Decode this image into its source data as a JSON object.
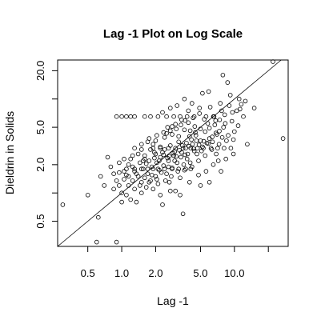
{
  "chart_data": {
    "type": "scatter",
    "title": "Lag -1 Plot on Log Scale",
    "xlabel": "Lag -1",
    "ylabel": "Dieldrin in Solids",
    "x_scale": "log",
    "y_scale": "log",
    "xlim": [
      0.27,
      30
    ],
    "ylim": [
      0.27,
      26
    ],
    "x_ticks": [
      0.5,
      1.0,
      2.0,
      5.0,
      10.0
    ],
    "x_tick_labels": [
      "0.5",
      "1.0",
      "2.0",
      "5.0",
      "10.0"
    ],
    "x_minor_ticks": [
      20.0
    ],
    "y_ticks": [
      0.5,
      2.0,
      5.0,
      20.0
    ],
    "y_tick_labels": [
      "0.5",
      "2.0",
      "5.0",
      "20.0"
    ],
    "y_minor_ticks": [
      1.0,
      10.0
    ],
    "grid": false,
    "reference_line": "y = x",
    "points": [
      [
        0.3,
        0.75
      ],
      [
        0.5,
        0.95
      ],
      [
        0.6,
        0.3
      ],
      [
        0.62,
        0.55
      ],
      [
        0.65,
        1.5
      ],
      [
        0.7,
        1.2
      ],
      [
        0.75,
        2.4
      ],
      [
        0.85,
        1.1
      ],
      [
        0.9,
        0.3
      ],
      [
        0.85,
        1.6
      ],
      [
        0.9,
        1.35
      ],
      [
        0.95,
        1.2
      ],
      [
        1.0,
        0.8
      ],
      [
        1.0,
        1.0
      ],
      [
        1.05,
        1.4
      ],
      [
        1.1,
        0.95
      ],
      [
        1.1,
        1.55
      ],
      [
        1.15,
        1.2
      ],
      [
        1.15,
        2.0
      ],
      [
        1.2,
        0.85
      ],
      [
        1.25,
        1.35
      ],
      [
        1.3,
        1.1
      ],
      [
        1.3,
        1.7
      ],
      [
        1.35,
        0.8
      ],
      [
        1.4,
        1.5
      ],
      [
        1.45,
        2.1
      ],
      [
        1.5,
        1.0
      ],
      [
        1.5,
        1.3
      ],
      [
        1.55,
        1.8
      ],
      [
        1.6,
        2.5
      ],
      [
        1.65,
        1.15
      ],
      [
        1.7,
        1.6
      ],
      [
        1.75,
        2.2
      ],
      [
        1.8,
        1.35
      ],
      [
        1.85,
        1.9
      ],
      [
        1.9,
        1.1
      ],
      [
        1.95,
        2.7
      ],
      [
        2.0,
        1.5
      ],
      [
        2.05,
        2.1
      ],
      [
        2.1,
        1.25
      ],
      [
        2.15,
        1.75
      ],
      [
        2.2,
        2.4
      ],
      [
        2.3,
        0.75
      ],
      [
        2.35,
        1.95
      ],
      [
        2.4,
        2.9
      ],
      [
        2.5,
        1.6
      ],
      [
        2.6,
        2.2
      ],
      [
        2.65,
        1.3
      ],
      [
        2.7,
        3.2
      ],
      [
        2.8,
        1.85
      ],
      [
        2.9,
        2.5
      ],
      [
        3.0,
        1.05
      ],
      [
        3.1,
        2.1
      ],
      [
        3.2,
        3.5
      ],
      [
        3.3,
        1.45
      ],
      [
        3.4,
        2.7
      ],
      [
        3.5,
        0.6
      ],
      [
        3.6,
        1.75
      ],
      [
        3.7,
        3.0
      ],
      [
        3.8,
        2.3
      ],
      [
        4.0,
        4.0
      ],
      [
        4.2,
        1.9
      ],
      [
        4.4,
        2.8
      ],
      [
        4.6,
        3.6
      ],
      [
        4.8,
        2.2
      ],
      [
        5.0,
        4.8
      ],
      [
        5.2,
        3.1
      ],
      [
        5.5,
        2.5
      ],
      [
        5.8,
        5.5
      ],
      [
        6.0,
        3.8
      ],
      [
        6.3,
        2.9
      ],
      [
        6.6,
        6.5
      ],
      [
        7.0,
        4.2
      ],
      [
        7.3,
        3.3
      ],
      [
        7.7,
        7.5
      ],
      [
        8.0,
        5.0
      ],
      [
        8.5,
        3.6
      ],
      [
        9.0,
        8.5
      ],
      [
        9.5,
        5.8
      ],
      [
        10.0,
        4.5
      ],
      [
        11.0,
        10.0
      ],
      [
        12.0,
        6.5
      ],
      [
        13.0,
        3.3
      ],
      [
        15.0,
        8.0
      ],
      [
        22.0,
        25.0
      ],
      [
        27.0,
        3.8
      ],
      [
        1.2,
        2.3
      ],
      [
        1.3,
        3.0
      ],
      [
        1.5,
        2.9
      ],
      [
        1.7,
        3.5
      ],
      [
        1.9,
        3.3
      ],
      [
        2.0,
        3.6
      ],
      [
        2.2,
        3.1
      ],
      [
        2.4,
        3.9
      ],
      [
        2.5,
        4.3
      ],
      [
        2.7,
        4.6
      ],
      [
        2.8,
        5.1
      ],
      [
        3.0,
        5.4
      ],
      [
        3.2,
        4.0
      ],
      [
        3.4,
        6.0
      ],
      [
        3.6,
        4.7
      ],
      [
        3.9,
        5.6
      ],
      [
        4.3,
        6.3
      ],
      [
        4.5,
        4.4
      ],
      [
        4.9,
        7.0
      ],
      [
        5.4,
        6.1
      ],
      [
        6.1,
        8.2
      ],
      [
        6.8,
        5.9
      ],
      [
        7.5,
        9.0
      ],
      [
        8.2,
        6.8
      ],
      [
        9.2,
        11.0
      ],
      [
        10.5,
        7.5
      ],
      [
        11.5,
        8.8
      ],
      [
        0.9,
        6.5
      ],
      [
        1.0,
        6.5
      ],
      [
        1.1,
        6.5
      ],
      [
        1.2,
        6.5
      ],
      [
        1.3,
        6.5
      ],
      [
        1.6,
        6.5
      ],
      [
        1.8,
        6.5
      ],
      [
        2.1,
        6.5
      ],
      [
        2.5,
        6.5
      ],
      [
        2.9,
        6.5
      ],
      [
        3.3,
        6.5
      ],
      [
        3.8,
        6.5
      ],
      [
        4.4,
        6.5
      ],
      [
        5.6,
        6.5
      ],
      [
        6.5,
        6.5
      ],
      [
        1.9,
        3.0
      ],
      [
        2.2,
        3.0
      ],
      [
        2.6,
        3.0
      ],
      [
        3.0,
        3.0
      ],
      [
        3.5,
        3.0
      ],
      [
        4.1,
        3.0
      ],
      [
        4.7,
        3.0
      ],
      [
        5.3,
        3.0
      ],
      [
        6.2,
        3.0
      ],
      [
        7.1,
        3.0
      ],
      [
        8.1,
        3.0
      ],
      [
        9.3,
        3.0
      ],
      [
        1.1,
        1.8
      ],
      [
        1.3,
        1.8
      ],
      [
        1.5,
        1.8
      ],
      [
        1.7,
        1.8
      ],
      [
        1.9,
        1.8
      ],
      [
        2.1,
        1.8
      ],
      [
        2.4,
        1.8
      ],
      [
        2.8,
        1.8
      ],
      [
        3.2,
        1.8
      ],
      [
        3.7,
        1.8
      ],
      [
        4.1,
        1.8
      ],
      [
        0.95,
        1.65
      ],
      [
        1.05,
        1.7
      ],
      [
        1.15,
        1.5
      ],
      [
        1.25,
        1.9
      ],
      [
        1.35,
        1.6
      ],
      [
        1.45,
        1.2
      ],
      [
        1.6,
        1.45
      ],
      [
        1.75,
        1.3
      ],
      [
        1.85,
        1.55
      ],
      [
        2.05,
        1.4
      ],
      [
        2.25,
        1.65
      ],
      [
        2.45,
        1.35
      ],
      [
        2.6,
        1.9
      ],
      [
        2.75,
        1.5
      ],
      [
        2.95,
        2.2
      ],
      [
        3.15,
        1.7
      ],
      [
        3.35,
        2.4
      ],
      [
        3.55,
        2.0
      ],
      [
        3.85,
        2.6
      ],
      [
        4.05,
        2.1
      ],
      [
        4.25,
        3.3
      ],
      [
        4.65,
        2.6
      ],
      [
        5.1,
        2.8
      ],
      [
        5.7,
        3.4
      ],
      [
        6.4,
        3.5
      ],
      [
        6.9,
        2.6
      ],
      [
        7.8,
        3.9
      ],
      [
        8.8,
        4.1
      ],
      [
        9.8,
        3.7
      ],
      [
        10.8,
        5.2
      ],
      [
        1.4,
        2.6
      ],
      [
        1.6,
        2.3
      ],
      [
        1.8,
        2.9
      ],
      [
        2.0,
        2.6
      ],
      [
        2.3,
        2.7
      ],
      [
        2.55,
        2.35
      ],
      [
        2.85,
        2.65
      ],
      [
        3.05,
        2.45
      ],
      [
        3.45,
        3.2
      ],
      [
        3.75,
        3.4
      ],
      [
        4.15,
        3.7
      ],
      [
        4.55,
        4.1
      ],
      [
        5.0,
        3.6
      ],
      [
        5.5,
        4.5
      ],
      [
        6.0,
        4.9
      ],
      [
        6.7,
        5.3
      ],
      [
        7.4,
        6.0
      ],
      [
        8.3,
        5.5
      ],
      [
        9.6,
        7.2
      ],
      [
        11.2,
        7.8
      ],
      [
        12.5,
        9.5
      ],
      [
        2.2,
        0.95
      ],
      [
        2.7,
        1.05
      ],
      [
        3.3,
        0.95
      ],
      [
        4.0,
        1.3
      ],
      [
        4.8,
        1.55
      ],
      [
        5.6,
        1.7
      ],
      [
        6.5,
        2.0
      ],
      [
        7.2,
        2.2
      ],
      [
        8.4,
        2.3
      ],
      [
        9.8,
        2.6
      ],
      [
        6.0,
        1.3
      ],
      [
        7.6,
        1.7
      ],
      [
        5.0,
        1.2
      ],
      [
        0.8,
        1.9
      ],
      [
        0.95,
        2.1
      ],
      [
        1.05,
        2.3
      ],
      [
        1.25,
        2.5
      ],
      [
        1.55,
        2.2
      ],
      [
        1.65,
        2.05
      ],
      [
        1.95,
        2.35
      ],
      [
        2.15,
        2.2
      ],
      [
        2.35,
        2.55
      ],
      [
        2.65,
        2.45
      ],
      [
        2.95,
        2.75
      ],
      [
        3.25,
        2.85
      ],
      [
        3.65,
        2.55
      ],
      [
        3.95,
        3.15
      ],
      [
        4.35,
        2.95
      ],
      [
        4.85,
        3.25
      ],
      [
        5.35,
        3.55
      ],
      [
        5.85,
        3.35
      ],
      [
        6.35,
        3.95
      ],
      [
        6.85,
        4.35
      ],
      [
        7.35,
        4.55
      ],
      [
        3.1,
        8.5
      ],
      [
        3.6,
        10.0
      ],
      [
        4.2,
        9.0
      ],
      [
        4.9,
        8.0
      ],
      [
        5.2,
        11.5
      ],
      [
        2.3,
        7.2
      ],
      [
        2.7,
        8.0
      ],
      [
        5.9,
        12.0
      ],
      [
        7.9,
        18.0
      ],
      [
        8.7,
        15.0
      ],
      [
        3.9,
        7.5
      ],
      [
        1.5,
        3.3
      ],
      [
        1.75,
        3.8
      ],
      [
        2.05,
        4.1
      ],
      [
        2.35,
        4.4
      ],
      [
        2.55,
        5.0
      ],
      [
        2.8,
        4.2
      ],
      [
        3.05,
        4.8
      ],
      [
        3.35,
        5.3
      ],
      [
        3.65,
        5.9
      ],
      [
        4.05,
        4.6
      ],
      [
        4.45,
        5.1
      ]
    ]
  }
}
